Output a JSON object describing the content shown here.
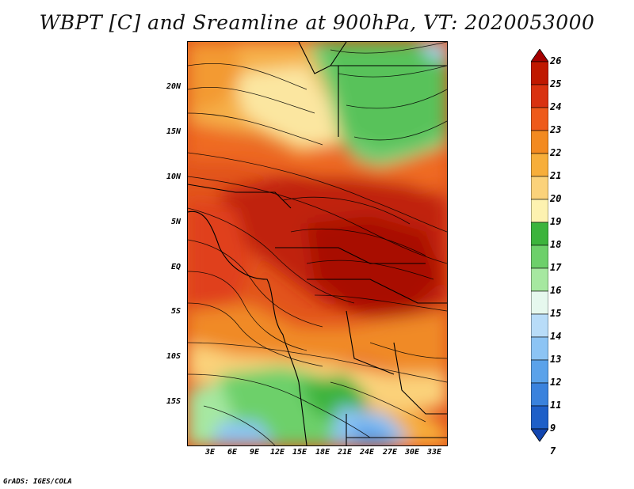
{
  "title": "WBPT [C] and Sreamline at 900hPa, VT: 2020053000",
  "credit": "GrADS: IGES/COLA",
  "map": {
    "lat_labels": [
      "20N",
      "15N",
      "10N",
      "5N",
      "EQ",
      "5S",
      "10S",
      "15S"
    ],
    "lon_labels": [
      "3E",
      "6E",
      "9E",
      "12E",
      "15E",
      "18E",
      "21E",
      "24E",
      "27E",
      "30E",
      "33E"
    ],
    "lat_range": [
      -20,
      24.5
    ],
    "lon_range": [
      0,
      34.5
    ],
    "field": "WBPT",
    "unit": "C",
    "level": "900hPa",
    "valid_time": "2020053000"
  },
  "colorbar": {
    "levels": [
      "26",
      "25",
      "24",
      "23",
      "22",
      "21",
      "20",
      "19",
      "18",
      "17",
      "16",
      "15",
      "14",
      "13",
      "12",
      "11",
      "9",
      "7"
    ],
    "colors": [
      "#a50000",
      "#c01800",
      "#d93210",
      "#ee5a1a",
      "#f38a20",
      "#f7ae3a",
      "#fbd27a",
      "#fdf2b0",
      "#3cb43c",
      "#6dd06a",
      "#a6e8a0",
      "#e6f8ee",
      "#b8dcf8",
      "#8cc4f4",
      "#5aa2ea",
      "#3a82dd",
      "#1e5fc8",
      "#1246b0"
    ]
  }
}
